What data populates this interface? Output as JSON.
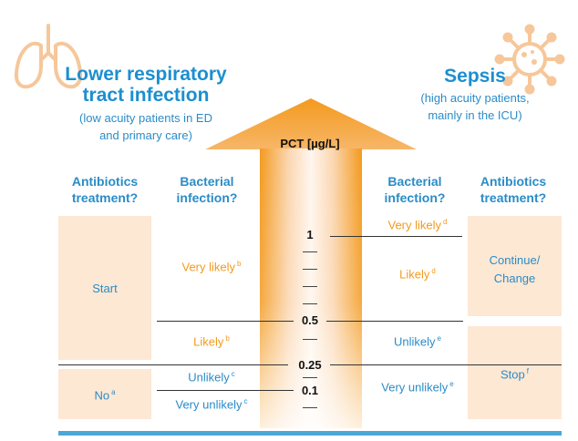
{
  "left_section": {
    "title": "Lower respiratory tract infection",
    "subtitle_line1": "(low acuity patients in ED",
    "subtitle_line2": "and primary care)",
    "col1_header_line1": "Antibiotics",
    "col1_header_line2": "treatment?",
    "col2_header_line1": "Bacterial",
    "col2_header_line2": "infection?",
    "start_label": "Start",
    "no_label": "No",
    "no_sup": "a",
    "very_likely": "Very likely",
    "very_likely_sup": "b",
    "likely": "Likely",
    "likely_sup": "b",
    "unlikely": "Unlikely",
    "unlikely_sup": "c",
    "very_unlikely": "Very unlikely",
    "very_unlikely_sup": "c"
  },
  "right_section": {
    "title": "Sepsis",
    "subtitle_line1": "(high acuity patients,",
    "subtitle_line2": "mainly in the ICU)",
    "col1_header_line1": "Bacterial",
    "col1_header_line2": "infection?",
    "col2_header_line1": "Antibiotics",
    "col2_header_line2": "treatment?",
    "very_likely": "Very likely",
    "very_likely_sup": "d",
    "likely": "Likely",
    "likely_sup": "d",
    "unlikely": "Unlikely",
    "unlikely_sup": "e",
    "very_unlikely": "Very unlikely",
    "very_unlikely_sup": "e",
    "continue_line1": "Continue/",
    "continue_line2": "Change",
    "stop_label": "Stop",
    "stop_sup": "f"
  },
  "scale": {
    "title": "PCT [µg/L]",
    "labels": [
      "1",
      "0.5",
      "0.25",
      "0.1"
    ]
  },
  "colors": {
    "title_blue": "#1b8fd0",
    "text_blue": "#2a8cc8",
    "text_orange": "#f39a1e",
    "box_fill": "#fde8d4",
    "arrow_orange": "#f39a1e",
    "bottom_bar": "#4aa8d8"
  },
  "icons": {
    "left": "lungs-icon",
    "right": "virus-icon"
  }
}
